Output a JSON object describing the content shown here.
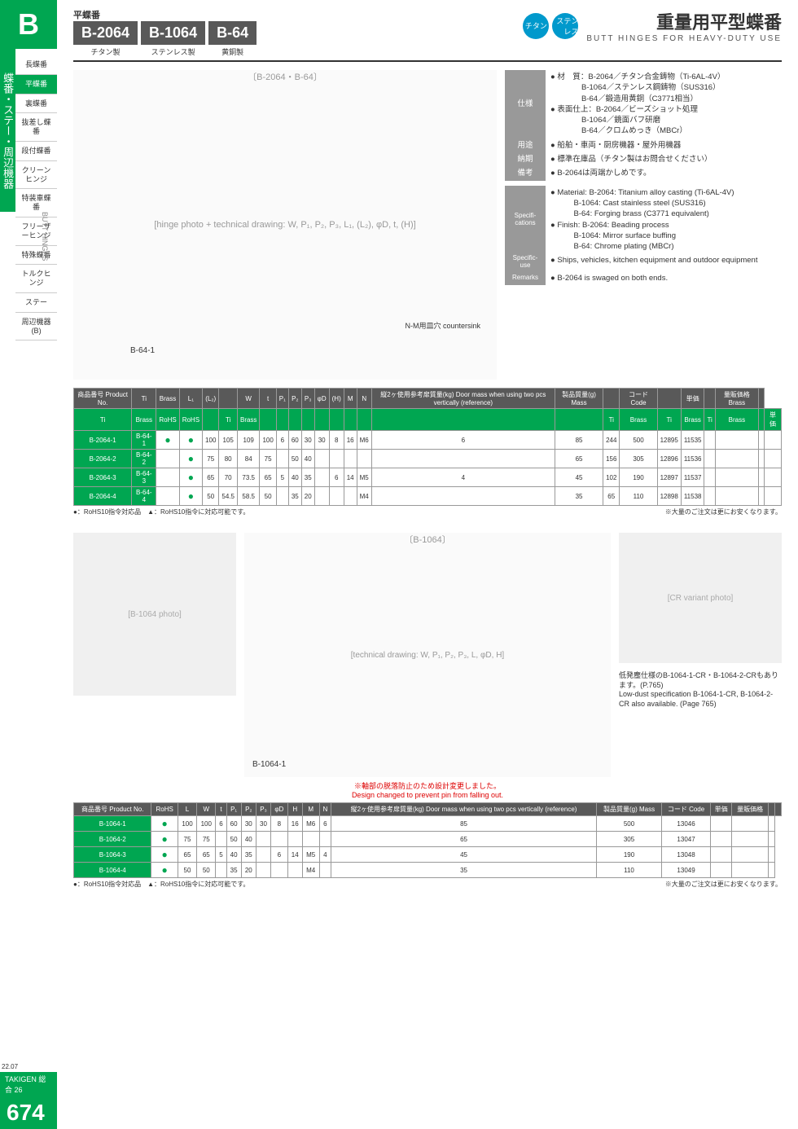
{
  "sidebar": {
    "letter": "B",
    "category_vert": "蝶番・ステー・周辺機器",
    "butt_en": "BUTT HINGES",
    "items": [
      "長蝶番",
      "平蝶番",
      "裏蝶番",
      "抜差し蝶番",
      "段付蝶番",
      "クリーンヒンジ",
      "特装車蝶番",
      "フリーザーヒンジ",
      "特殊蝶番",
      "トルクヒンジ",
      "ステー",
      "周辺機器(B)"
    ],
    "active_index": 1
  },
  "header": {
    "cat": "平蝶番",
    "models": [
      {
        "code": "B-2064",
        "sub": "チタン製"
      },
      {
        "code": "B-1064",
        "sub": "ステンレス製"
      },
      {
        "code": "B-64",
        "sub": "黄銅製"
      }
    ],
    "badges": [
      "チタン",
      "ステンレス"
    ],
    "title_jp": "重量用平型蝶番",
    "title_en": "BUTT HINGES FOR HEAVY-DUTY USE"
  },
  "diagram1_label": "〔B-2064・B-64〕",
  "diagram1_caption": "B-64-1",
  "diagram1_note": "N-M用皿穴 countersink",
  "spec_jp": [
    {
      "label": "仕様",
      "val": "● 材　質：B-2064／チタン合金鋳物（Ti-6AL-4V）\n　　　　B-1064／ステンレス鋼鋳物（SUS316）\n　　　　B-64／鍛造用黄銅（C3771相当）\n● 表面仕上：B-2064／ビーズショット処理\n　　　　B-1064／鏡面バフ研磨\n　　　　B-64／クロムめっき（MBCr）"
    },
    {
      "label": "用途",
      "val": "● 船舶・車両・厨房機器・屋外用機器"
    },
    {
      "label": "納期",
      "val": "● 標準在庫品（チタン製はお問合せください）"
    },
    {
      "label": "備考",
      "val": "● B-2064は両端かしめです。"
    }
  ],
  "spec_en": [
    {
      "label": "Specifi-cations",
      "val": "● Material: B-2064: Titanium alloy casting (Ti-6AL-4V)\n　　　B-1064: Cast stainless steel (SUS316)\n　　　B-64: Forging brass (C3771 equivalent)\n● Finish: B-2064: Beading process\n　　　B-1064: Mirror surface buffing\n　　　B-64: Chrome plating (MBCr)"
    },
    {
      "label": "Specific-use",
      "val": "● Ships, vehicles, kitchen equipment and outdoor equipment"
    },
    {
      "label": "Remarks",
      "val": "● B-2064 is swaged on both ends."
    }
  ],
  "table1": {
    "head1": [
      "商品番号 Product No.",
      "Ti",
      "Brass",
      "L₁",
      "(L₂)",
      "",
      "W",
      "t",
      "P₁",
      "P₂",
      "P₃",
      "φD",
      "(H)",
      "M",
      "N",
      "縦2ヶ使用参考扉質量(kg) Door mass when using two pcs vertically (reference)",
      "製品質量(g) Mass",
      "",
      "コード Code",
      "",
      "単価",
      "",
      "量販価格 Brass",
      ""
    ],
    "head2": [
      "Ti",
      "Brass",
      "RoHS",
      "RoHS",
      "",
      "Ti",
      "Brass",
      "",
      "",
      "",
      "",
      "",
      "",
      "",
      "",
      "",
      "",
      "Ti",
      "Brass",
      "Ti",
      "Brass",
      "Ti",
      "Brass",
      "",
      "単価"
    ],
    "rows": [
      [
        "B-2064-1",
        "B-64-1",
        "●",
        "●",
        "100",
        "105",
        "109",
        "100",
        "6",
        "60",
        "30",
        "30",
        "8",
        "16",
        "M6",
        "6",
        "85",
        "244",
        "500",
        "12895",
        "11535",
        "",
        "",
        "",
        ""
      ],
      [
        "B-2064-2",
        "B-64-2",
        "",
        "●",
        "75",
        "80",
        "84",
        "75",
        "",
        "50",
        "40",
        "",
        "",
        "",
        "",
        "",
        "65",
        "156",
        "305",
        "12896",
        "11536",
        "",
        "",
        "",
        ""
      ],
      [
        "B-2064-3",
        "B-64-3",
        "",
        "●",
        "65",
        "70",
        "73.5",
        "65",
        "5",
        "40",
        "35",
        "",
        "6",
        "14",
        "M5",
        "4",
        "45",
        "102",
        "190",
        "12897",
        "11537",
        "",
        "",
        "",
        ""
      ],
      [
        "B-2064-4",
        "B-64-4",
        "",
        "●",
        "50",
        "54.5",
        "58.5",
        "50",
        "",
        "35",
        "20",
        "",
        "",
        "",
        "M4",
        "",
        "35",
        "65",
        "110",
        "12898",
        "11538",
        "",
        "",
        "",
        ""
      ]
    ]
  },
  "table_note_l": "●：RoHS10指令対応品　▲：RoHS10指令に対応可能です。",
  "table_note_r": "※大量のご注文は更にお安くなります。",
  "diagram2_label": "〔B-1064〕",
  "diagram2_caption": "B-1064-1",
  "red_note_jp": "※軸部の脱落防止のため設計変更しました。",
  "red_note_en": "Design changed to prevent pin from falling out.",
  "lowdust": "低発塵仕様のB-1064-1-CR・B-1064-2-CRもあります。(P.765)\nLow-dust specification B-1064-1-CR, B-1064-2-CR also available. (Page 765)",
  "table2": {
    "head": [
      "商品番号 Product No.",
      "RoHS",
      "L",
      "W",
      "t",
      "P₁",
      "P₂",
      "P₃",
      "φD",
      "H",
      "M",
      "N",
      "縦2ヶ使用参考扉質量(kg) Door mass when using two pcs vertically (reference)",
      "製品質量(g) Mass",
      "コード Code",
      "単価",
      "量販価格",
      "",
      ""
    ],
    "head2": [
      "",
      "",
      "",
      "",
      "",
      "",
      "",
      "",
      "",
      "",
      "",
      "",
      "",
      "",
      "",
      "",
      "数量",
      "単価"
    ],
    "rows": [
      [
        "B-1064-1",
        "●",
        "100",
        "100",
        "6",
        "60",
        "30",
        "30",
        "8",
        "16",
        "M6",
        "6",
        "85",
        "500",
        "13046",
        "",
        "",
        ""
      ],
      [
        "B-1064-2",
        "●",
        "75",
        "75",
        "",
        "50",
        "40",
        "",
        "",
        "",
        "",
        "",
        "65",
        "305",
        "13047",
        "",
        "",
        ""
      ],
      [
        "B-1064-3",
        "●",
        "65",
        "65",
        "5",
        "40",
        "35",
        "",
        "6",
        "14",
        "M5",
        "4",
        "45",
        "190",
        "13048",
        "",
        "",
        ""
      ],
      [
        "B-1064-4",
        "●",
        "50",
        "50",
        "",
        "35",
        "20",
        "",
        "",
        "",
        "M4",
        "",
        "35",
        "110",
        "13049",
        "",
        "",
        ""
      ]
    ]
  },
  "footer": {
    "date": "22.07",
    "catalog": "TAKIGEN 総合 26",
    "page": "674"
  }
}
